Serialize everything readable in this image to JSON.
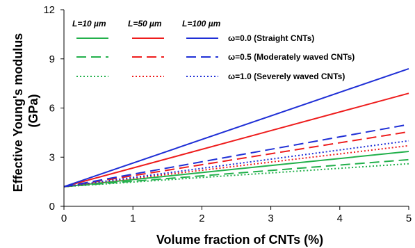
{
  "chart_data": {
    "type": "line",
    "xlabel": "Volume fraction of CNTs (%)",
    "ylabel_lines": [
      "Effective Young's modulus",
      "(GPa)"
    ],
    "xlim": [
      0,
      5
    ],
    "ylim": [
      0,
      12
    ],
    "xticks": [
      0,
      1,
      2,
      3,
      4,
      5
    ],
    "yticks": [
      0,
      3,
      6,
      9,
      12
    ],
    "grid": false,
    "legend": {
      "placement": "top-left",
      "column_headers": [
        "L=10 µm",
        "L=50 µm",
        "L=100 µm"
      ],
      "row_labels": [
        "ω=0.0 (Straight CNTs)",
        "ω=0.5 (Moderately waved CNTs)",
        "ω=1.0 (Severely waved CNTs)"
      ]
    },
    "colors": {
      "L10": "#22b04b",
      "L50": "#ee1c1c",
      "L100": "#1f2fd6"
    },
    "series": [
      {
        "L": "L=10 µm",
        "omega": "ω=0.0",
        "color_key": "L10",
        "style": "solid",
        "x": [
          0,
          5
        ],
        "y": [
          1.2,
          3.35
        ]
      },
      {
        "L": "L=10 µm",
        "omega": "ω=0.5",
        "color_key": "L10",
        "style": "dashed",
        "x": [
          0,
          5
        ],
        "y": [
          1.2,
          2.85
        ]
      },
      {
        "L": "L=10 µm",
        "omega": "ω=1.0",
        "color_key": "L10",
        "style": "dotted",
        "x": [
          0,
          5
        ],
        "y": [
          1.2,
          2.6
        ]
      },
      {
        "L": "L=50 µm",
        "omega": "ω=0.0",
        "color_key": "L50",
        "style": "solid",
        "x": [
          0,
          5
        ],
        "y": [
          1.2,
          6.9
        ]
      },
      {
        "L": "L=50 µm",
        "omega": "ω=0.5",
        "color_key": "L50",
        "style": "dashed",
        "x": [
          0,
          5
        ],
        "y": [
          1.2,
          4.55
        ]
      },
      {
        "L": "L=50 µm",
        "omega": "ω=1.0",
        "color_key": "L50",
        "style": "dotted",
        "x": [
          0,
          5
        ],
        "y": [
          1.2,
          3.7
        ]
      },
      {
        "L": "L=100 µm",
        "omega": "ω=0.0",
        "color_key": "L100",
        "style": "solid",
        "x": [
          0,
          5
        ],
        "y": [
          1.2,
          8.4
        ]
      },
      {
        "L": "L=100 µm",
        "omega": "ω=0.5",
        "color_key": "L100",
        "style": "dashed",
        "x": [
          0,
          5
        ],
        "y": [
          1.2,
          5.0
        ]
      },
      {
        "L": "L=100 µm",
        "omega": "ω=1.0",
        "color_key": "L100",
        "style": "dotted",
        "x": [
          0,
          5
        ],
        "y": [
          1.2,
          4.0
        ]
      }
    ]
  }
}
